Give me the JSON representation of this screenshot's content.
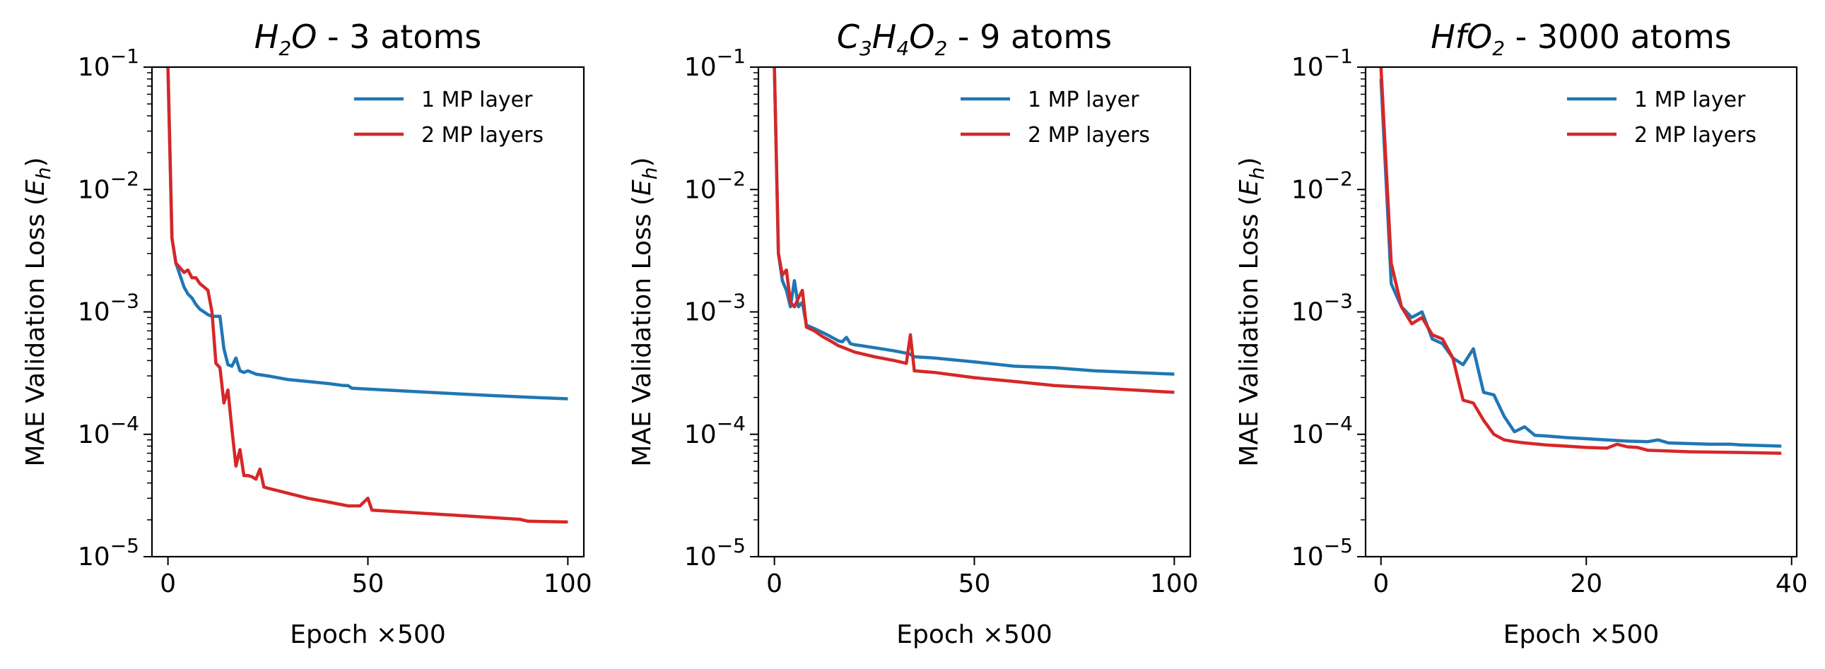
{
  "chart_data": [
    {
      "type": "line",
      "title": {
        "formula": [
          [
            "H",
            ""
          ],
          [
            "2",
            "sub"
          ],
          [
            "O",
            ""
          ]
        ],
        "suffix": " - 3 atoms"
      },
      "xlabel": "Epoch ×500",
      "ylabel": "MAE Validation Loss",
      "ylabel_unit": {
        "base": "E",
        "sub": "h"
      },
      "yscale": "log",
      "ylim": [
        1e-05,
        0.1
      ],
      "xlim": [
        -4,
        104
      ],
      "xticks": [
        0,
        50,
        100
      ],
      "yticks": [
        {
          "base": "10",
          "exp": "−5",
          "value": 1e-05
        },
        {
          "base": "10",
          "exp": "−4",
          "value": 0.0001
        },
        {
          "base": "10",
          "exp": "−3",
          "value": 0.001
        },
        {
          "base": "10",
          "exp": "−2",
          "value": 0.01
        },
        {
          "base": "10",
          "exp": "−1",
          "value": 0.1
        }
      ],
      "legend": {
        "position": "top-right"
      },
      "series": [
        {
          "name": "1 MP layer",
          "color": "#1f77b4",
          "x": [
            0,
            1,
            2,
            3,
            4,
            5,
            6,
            7,
            8,
            9,
            10,
            11,
            12,
            13,
            14,
            15,
            16,
            17,
            18,
            19,
            20,
            22,
            25,
            30,
            35,
            40,
            44,
            45,
            46,
            50,
            60,
            70,
            80,
            90,
            100
          ],
          "y": [
            0.1,
            0.004,
            0.0025,
            0.002,
            0.0016,
            0.0014,
            0.0013,
            0.00115,
            0.00105,
            0.001,
            0.00095,
            0.00092,
            0.00092,
            0.00092,
            0.0005,
            0.00037,
            0.00036,
            0.00042,
            0.00033,
            0.00032,
            0.00033,
            0.00031,
            0.0003,
            0.00028,
            0.00027,
            0.00026,
            0.00025,
            0.00025,
            0.000238,
            0.000234,
            0.000225,
            0.000216,
            0.000208,
            0.000201,
            0.000195
          ]
        },
        {
          "name": "2 MP layers",
          "color": "#d62728",
          "x": [
            0,
            1,
            2,
            3,
            4,
            5,
            6,
            7,
            8,
            9,
            10,
            11,
            12,
            13,
            14,
            15,
            16,
            17,
            18,
            19,
            20,
            21,
            22,
            23,
            24,
            30,
            35,
            40,
            45,
            48,
            50,
            51,
            60,
            70,
            80,
            88,
            90,
            100
          ],
          "y": [
            0.1,
            0.004,
            0.0025,
            0.0023,
            0.0021,
            0.0022,
            0.0019,
            0.0019,
            0.0017,
            0.0016,
            0.0015,
            0.001,
            0.00038,
            0.00035,
            0.00018,
            0.00023,
            0.00011,
            5.5e-05,
            7.5e-05,
            4.6e-05,
            4.6e-05,
            4.5e-05,
            4.3e-05,
            5.2e-05,
            3.7e-05,
            3.3e-05,
            3e-05,
            2.8e-05,
            2.6e-05,
            2.6e-05,
            3e-05,
            2.4e-05,
            2.3e-05,
            2.2e-05,
            2.1e-05,
            2.02e-05,
            1.95e-05,
            1.92e-05
          ]
        }
      ]
    },
    {
      "type": "line",
      "title": {
        "formula": [
          [
            "C",
            ""
          ],
          [
            "3",
            "sub"
          ],
          [
            "H",
            ""
          ],
          [
            "4",
            "sub"
          ],
          [
            "O",
            ""
          ],
          [
            "2",
            "sub"
          ]
        ],
        "suffix": " - 9 atoms"
      },
      "xlabel": "Epoch ×500",
      "ylabel": "MAE Validation Loss",
      "ylabel_unit": {
        "base": "E",
        "sub": "h"
      },
      "yscale": "log",
      "ylim": [
        1e-05,
        0.1
      ],
      "xlim": [
        -4,
        104
      ],
      "xticks": [
        0,
        50,
        100
      ],
      "yticks": [
        {
          "base": "10",
          "exp": "−5",
          "value": 1e-05
        },
        {
          "base": "10",
          "exp": "−4",
          "value": 0.0001
        },
        {
          "base": "10",
          "exp": "−3",
          "value": 0.001
        },
        {
          "base": "10",
          "exp": "−2",
          "value": 0.01
        },
        {
          "base": "10",
          "exp": "−1",
          "value": 0.1
        }
      ],
      "legend": {
        "position": "top-right"
      },
      "series": [
        {
          "name": "1 MP layer",
          "color": "#1f77b4",
          "x": [
            0,
            1,
            2,
            3,
            4,
            5,
            6,
            7,
            8,
            10,
            12,
            14,
            16,
            17,
            18,
            19,
            20,
            25,
            30,
            33,
            34,
            35,
            40,
            50,
            60,
            70,
            80,
            90,
            100
          ],
          "y": [
            0.1,
            0.003,
            0.0018,
            0.0015,
            0.0011,
            0.0018,
            0.0011,
            0.0012,
            0.00078,
            0.00073,
            0.00068,
            0.00063,
            0.00058,
            0.00057,
            0.00062,
            0.00055,
            0.00054,
            0.00051,
            0.00048,
            0.00046,
            0.00045,
            0.00043,
            0.00042,
            0.00039,
            0.00036,
            0.00035,
            0.00033,
            0.00032,
            0.00031
          ]
        },
        {
          "name": "2 MP layers",
          "color": "#d62728",
          "x": [
            0,
            1,
            2,
            3,
            4,
            5,
            6,
            7,
            8,
            10,
            12,
            14,
            16,
            18,
            20,
            25,
            30,
            33,
            34,
            35,
            40,
            50,
            60,
            70,
            80,
            90,
            100
          ],
          "y": [
            0.1,
            0.003,
            0.002,
            0.0022,
            0.0012,
            0.0011,
            0.0013,
            0.0015,
            0.00075,
            0.0007,
            0.00063,
            0.00058,
            0.00053,
            0.0005,
            0.00047,
            0.00043,
            0.0004,
            0.00038,
            0.00065,
            0.00033,
            0.00032,
            0.00029,
            0.00027,
            0.00025,
            0.00024,
            0.00023,
            0.00022
          ]
        }
      ]
    },
    {
      "type": "line",
      "title": {
        "formula": [
          [
            "HfO",
            ""
          ],
          [
            "2",
            "sub"
          ]
        ],
        "suffix": " - 3000 atoms"
      },
      "xlabel": "Epoch ×500",
      "ylabel": "MAE Validation Loss",
      "ylabel_unit": {
        "base": "E",
        "sub": "h"
      },
      "yscale": "log",
      "ylim": [
        1e-05,
        0.1
      ],
      "xlim": [
        -1.5,
        40.5
      ],
      "xticks": [
        0,
        20,
        40
      ],
      "yticks": [
        {
          "base": "10",
          "exp": "−5",
          "value": 1e-05
        },
        {
          "base": "10",
          "exp": "−4",
          "value": 0.0001
        },
        {
          "base": "10",
          "exp": "−3",
          "value": 0.001
        },
        {
          "base": "10",
          "exp": "−2",
          "value": 0.01
        },
        {
          "base": "10",
          "exp": "−1",
          "value": 0.1
        }
      ],
      "legend": {
        "position": "top-right"
      },
      "series": [
        {
          "name": "1 MP layer",
          "color": "#1f77b4",
          "x": [
            0,
            1,
            2,
            3,
            4,
            5,
            6,
            7,
            8,
            9,
            10,
            11,
            12,
            13,
            14,
            15,
            16,
            18,
            20,
            22,
            24,
            26,
            27,
            28,
            30,
            32,
            34,
            35,
            37,
            39
          ],
          "y": [
            0.08,
            0.0017,
            0.0011,
            0.0009,
            0.001,
            0.0006,
            0.00055,
            0.00042,
            0.00037,
            0.0005,
            0.00022,
            0.00021,
            0.00014,
            0.000105,
            0.000115,
            9.8e-05,
            9.7e-05,
            9.4e-05,
            9.2e-05,
            9e-05,
            8.8e-05,
            8.7e-05,
            9e-05,
            8.5e-05,
            8.4e-05,
            8.3e-05,
            8.3e-05,
            8.2e-05,
            8.1e-05,
            8e-05
          ]
        },
        {
          "name": "2 MP layers",
          "color": "#d62728",
          "x": [
            0,
            1,
            2,
            3,
            4,
            5,
            6,
            7,
            8,
            9,
            10,
            11,
            12,
            13,
            14,
            16,
            18,
            20,
            22,
            23,
            24,
            25,
            26,
            28,
            30,
            35,
            39
          ],
          "y": [
            0.1,
            0.0025,
            0.0011,
            0.0008,
            0.0009,
            0.00065,
            0.0006,
            0.00042,
            0.00019,
            0.00018,
            0.00013,
            0.0001,
            9e-05,
            8.7e-05,
            8.5e-05,
            8.2e-05,
            8e-05,
            7.8e-05,
            7.7e-05,
            8.3e-05,
            7.9e-05,
            7.8e-05,
            7.4e-05,
            7.3e-05,
            7.2e-05,
            7.1e-05,
            7e-05
          ]
        }
      ]
    }
  ]
}
